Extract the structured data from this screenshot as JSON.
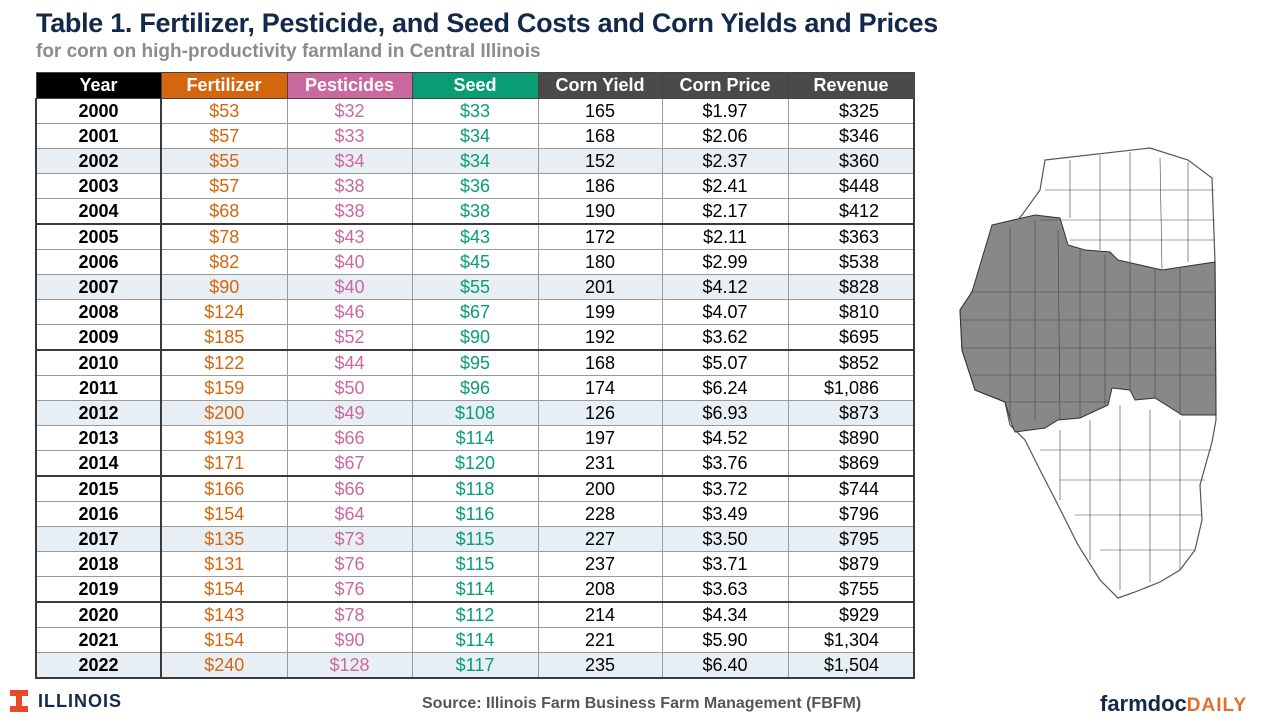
{
  "title": "Table 1. Fertilizer, Pesticide, and Seed Costs and Corn Yields and Prices",
  "subtitle": "for corn on high-productivity farmland in Central Illinois",
  "colors": {
    "fertilizer": "#d4660f",
    "pesticides": "#c9699e",
    "seed": "#0a9c73",
    "header_dark": "#4a4a4a",
    "year_header": "#000000",
    "map_shaded": "#888888"
  },
  "table": {
    "headers": [
      "Year",
      "Fertilizer",
      "Pesticides",
      "Seed",
      "Corn Yield",
      "Corn Price",
      "Revenue"
    ],
    "rows": [
      [
        "2000",
        "$53",
        "$32",
        "$33",
        "165",
        "$1.97",
        "$325"
      ],
      [
        "2001",
        "$57",
        "$33",
        "$34",
        "168",
        "$2.06",
        "$346"
      ],
      [
        "2002",
        "$55",
        "$34",
        "$34",
        "152",
        "$2.37",
        "$360"
      ],
      [
        "2003",
        "$57",
        "$38",
        "$36",
        "186",
        "$2.41",
        "$448"
      ],
      [
        "2004",
        "$68",
        "$38",
        "$38",
        "190",
        "$2.17",
        "$412"
      ],
      [
        "2005",
        "$78",
        "$43",
        "$43",
        "172",
        "$2.11",
        "$363"
      ],
      [
        "2006",
        "$82",
        "$40",
        "$45",
        "180",
        "$2.99",
        "$538"
      ],
      [
        "2007",
        "$90",
        "$40",
        "$55",
        "201",
        "$4.12",
        "$828"
      ],
      [
        "2008",
        "$124",
        "$46",
        "$67",
        "199",
        "$4.07",
        "$810"
      ],
      [
        "2009",
        "$185",
        "$52",
        "$90",
        "192",
        "$3.62",
        "$695"
      ],
      [
        "2010",
        "$122",
        "$44",
        "$95",
        "168",
        "$5.07",
        "$852"
      ],
      [
        "2011",
        "$159",
        "$50",
        "$96",
        "174",
        "$6.24",
        "$1,086"
      ],
      [
        "2012",
        "$200",
        "$49",
        "$108",
        "126",
        "$6.93",
        "$873"
      ],
      [
        "2013",
        "$193",
        "$66",
        "$114",
        "197",
        "$4.52",
        "$890"
      ],
      [
        "2014",
        "$171",
        "$67",
        "$120",
        "231",
        "$3.76",
        "$869"
      ],
      [
        "2015",
        "$166",
        "$66",
        "$118",
        "200",
        "$3.72",
        "$744"
      ],
      [
        "2016",
        "$154",
        "$64",
        "$116",
        "228",
        "$3.49",
        "$796"
      ],
      [
        "2017",
        "$135",
        "$73",
        "$115",
        "227",
        "$3.50",
        "$795"
      ],
      [
        "2018",
        "$131",
        "$76",
        "$115",
        "237",
        "$3.71",
        "$879"
      ],
      [
        "2019",
        "$154",
        "$76",
        "$114",
        "208",
        "$3.63",
        "$755"
      ],
      [
        "2020",
        "$143",
        "$78",
        "$112",
        "214",
        "$4.34",
        "$929"
      ],
      [
        "2021",
        "$154",
        "$90",
        "$114",
        "221",
        "$5.90",
        "$1,304"
      ],
      [
        "2022",
        "$240",
        "$128",
        "$117",
        "235",
        "$6.40",
        "$1,504"
      ]
    ]
  },
  "footer": {
    "logo_text": "ILLINOIS",
    "logo_icon": "block-i-icon",
    "source": "Source: Illinois Farm Business Farm Management (FBFM)",
    "brand_a": "farmdoc",
    "brand_b": "DAILY"
  },
  "map": {
    "icon": "illinois-map-icon"
  }
}
